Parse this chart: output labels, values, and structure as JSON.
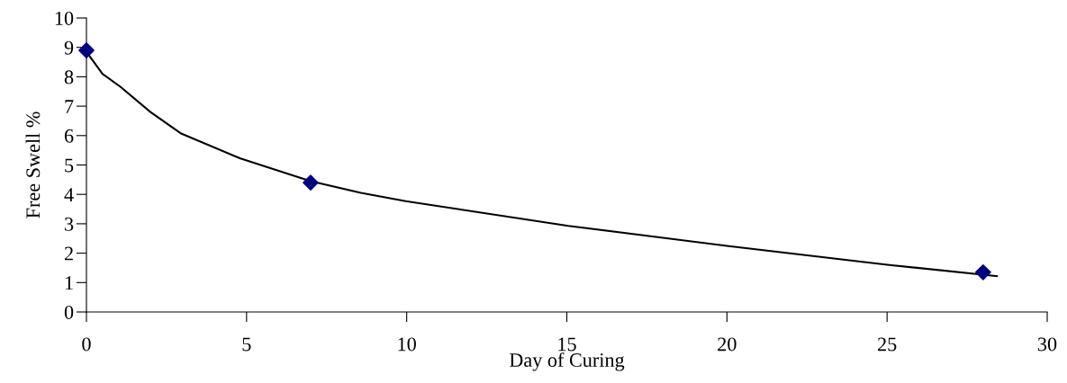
{
  "chart_data": {
    "type": "scatter",
    "xlabel": "Day of Curing",
    "ylabel": "Free Swell %",
    "xlim": [
      0,
      30
    ],
    "xticks": [
      0,
      5,
      10,
      15,
      20,
      25,
      30
    ],
    "ylim": [
      0,
      10
    ],
    "yticks": [
      0,
      1,
      2,
      3,
      4,
      5,
      6,
      7,
      8,
      9,
      10
    ],
    "grid": false,
    "legend": false,
    "series": [
      {
        "color": "#000080",
        "marker": "diamond",
        "x": [
          0,
          7,
          28
        ],
        "values": [
          8.9,
          4.4,
          1.35
        ]
      },
      {
        "type": "line",
        "color": "#000000",
        "marker": "none",
        "line_style": "solid",
        "x": [
          0,
          0.5,
          1.06,
          2.0,
          2.94,
          4.81,
          7.0,
          8.57,
          9.97,
          15.05,
          20.06,
          25.07,
          28.43
        ],
        "values": [
          8.85,
          8.1,
          7.66,
          6.8,
          6.08,
          5.22,
          4.45,
          4.05,
          3.77,
          2.93,
          2.24,
          1.6,
          1.22
        ]
      }
    ]
  }
}
